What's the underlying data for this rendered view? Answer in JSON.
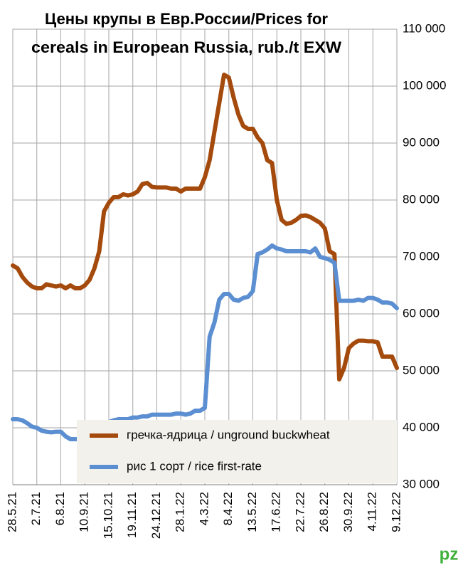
{
  "chart_data": {
    "type": "line",
    "title": [
      "Цены крупы в Евр.России/Prices for",
      "cereals in European Russia, rub./t EXW"
    ],
    "categories": [
      "28.5.21",
      null,
      null,
      null,
      null,
      "2.7.21",
      null,
      null,
      null,
      null,
      "6.8.21",
      null,
      null,
      null,
      null,
      "10.9.21",
      null,
      null,
      null,
      null,
      "15.10.21",
      null,
      null,
      null,
      null,
      "19.11.21",
      null,
      null,
      null,
      null,
      "24.12.21",
      null,
      null,
      null,
      null,
      "28.1.22",
      null,
      null,
      null,
      null,
      "4.3.22",
      null,
      null,
      null,
      null,
      "8.4.22",
      null,
      null,
      null,
      null,
      "13.5.22",
      null,
      null,
      null,
      null,
      "17.6.22",
      null,
      null,
      null,
      null,
      "22.7.22",
      null,
      null,
      null,
      null,
      "26.8.22",
      null,
      null,
      null,
      null,
      "30.9.22",
      null,
      null,
      null,
      null,
      "4.11.22",
      null,
      null,
      null,
      null,
      "9.12.22"
    ],
    "series": [
      {
        "name": "гречка-ядрица / unground buckwheat",
        "color": "#a44a0c",
        "values": [
          68500,
          68000,
          66500,
          65500,
          64800,
          64500,
          64500,
          65200,
          65000,
          64800,
          65000,
          64500,
          65000,
          64500,
          64500,
          65000,
          66000,
          68000,
          71000,
          78000,
          79500,
          80500,
          80500,
          81000,
          80800,
          81000,
          81500,
          82800,
          83000,
          82300,
          82200,
          82200,
          82200,
          82000,
          82000,
          81500,
          82000,
          82000,
          82000,
          82000,
          84000,
          87000,
          92000,
          97000,
          102000,
          101500,
          98000,
          95000,
          93000,
          92500,
          92500,
          91000,
          90000,
          87000,
          86500,
          80000,
          76500,
          75800,
          76000,
          76500,
          77200,
          77300,
          77000,
          76500,
          76000,
          75000,
          71000,
          70500,
          48500,
          50500,
          54000,
          54800,
          55300,
          55300,
          55200,
          55200,
          55000,
          52500,
          52500,
          52500,
          50500
        ]
      },
      {
        "name": "рис 1 сорт / rice first-rate",
        "color": "#5b8fd1",
        "values": [
          41500,
          41500,
          41300,
          40800,
          40200,
          40000,
          39500,
          39300,
          39200,
          39300,
          39300,
          38500,
          38000,
          38000,
          38000,
          37800,
          37800,
          37500,
          38000,
          38500,
          41000,
          41300,
          41500,
          41500,
          41500,
          41800,
          41800,
          42000,
          42000,
          42300,
          42300,
          42300,
          42300,
          42300,
          42500,
          42500,
          42300,
          42500,
          43000,
          43000,
          43500,
          56000,
          58500,
          62500,
          63500,
          63500,
          62500,
          62300,
          62800,
          63000,
          64000,
          70500,
          70800,
          71300,
          72000,
          71500,
          71300,
          71000,
          71000,
          71000,
          71000,
          71000,
          70800,
          71500,
          70000,
          69800,
          69500,
          69000,
          62300,
          62300,
          62300,
          62300,
          62500,
          62300,
          62800,
          62800,
          62500,
          62000,
          62000,
          61800,
          61000
        ]
      }
    ],
    "ylim": [
      30000,
      110000
    ],
    "yticks": [
      {
        "value": 30000,
        "label": "30 000"
      },
      {
        "value": 40000,
        "label": "40 000"
      },
      {
        "value": 50000,
        "label": "50 000"
      },
      {
        "value": 60000,
        "label": "60 000"
      },
      {
        "value": 70000,
        "label": "70 000"
      },
      {
        "value": 80000,
        "label": "80 000"
      },
      {
        "value": 90000,
        "label": "90 000"
      },
      {
        "value": 100000,
        "label": "100 000"
      },
      {
        "value": 110000,
        "label": "110 000"
      }
    ],
    "grid": true,
    "legend": "bottom",
    "logo": "pz"
  }
}
